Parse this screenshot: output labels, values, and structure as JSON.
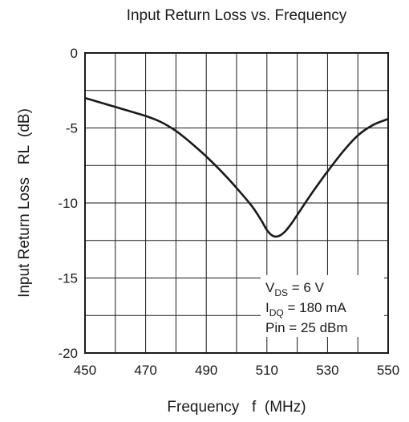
{
  "chart_data": {
    "type": "line",
    "title": "Input Return Loss vs. Frequency",
    "xlabel": "Frequency   f  (MHz)",
    "ylabel": "Input Return Loss   RL  (dB)",
    "xlim": [
      450,
      550
    ],
    "ylim": [
      -20,
      0
    ],
    "x_ticks": [
      "450",
      "470",
      "490",
      "510",
      "530",
      "550"
    ],
    "y_ticks": [
      "0",
      "-5",
      "-10",
      "-15",
      "-20"
    ],
    "grid": true,
    "series": [
      {
        "x": [
          450,
          455,
          460,
          465,
          470,
          475,
          480,
          485,
          490,
          495,
          500,
          505,
          508,
          510,
          512,
          514,
          516,
          518,
          520,
          525,
          530,
          535,
          540,
          545,
          550
        ],
        "y": [
          -3.0,
          -3.3,
          -3.6,
          -3.9,
          -4.2,
          -4.6,
          -5.2,
          -6.0,
          -6.9,
          -7.9,
          -9.0,
          -10.2,
          -11.1,
          -11.8,
          -12.2,
          -12.2,
          -11.9,
          -11.4,
          -10.8,
          -9.3,
          -7.9,
          -6.6,
          -5.5,
          -4.8,
          -4.4
        ]
      }
    ],
    "annotations": [
      {
        "main": "V",
        "sub": "DS",
        "rest": " = 6 V"
      },
      {
        "main": "I",
        "sub": "DQ",
        "rest": " = 180 mA"
      },
      {
        "main": "Pin = 25 dBm",
        "sub": "",
        "rest": ""
      }
    ]
  }
}
